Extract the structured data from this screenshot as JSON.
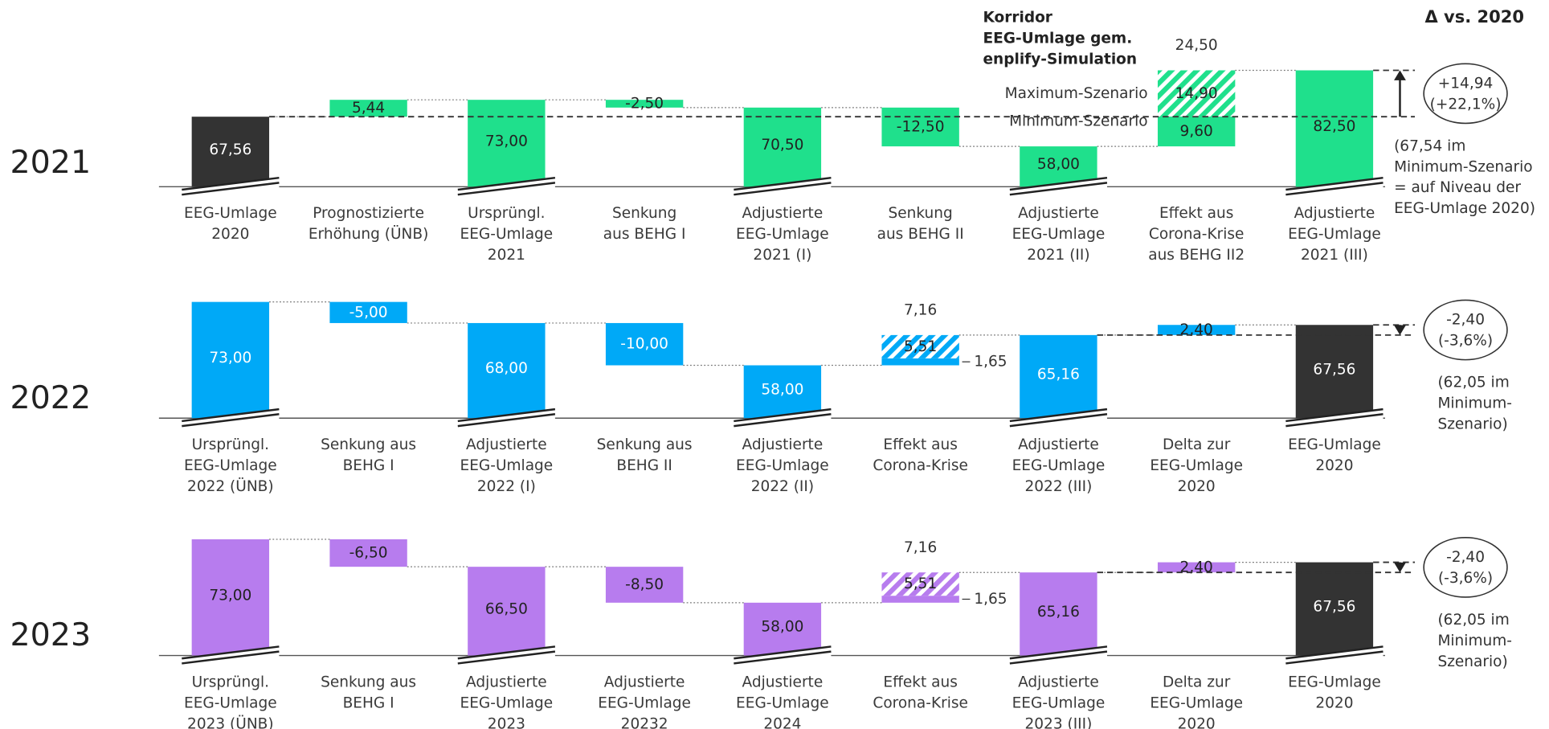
{
  "note": "Δ vs. 2020",
  "chart_data": [
    {
      "type": "waterfall",
      "title": "2021",
      "color": "#1fe08c",
      "ylim": [
        45,
        85
      ],
      "categories": [
        [
          "EEG-Umlage",
          "2020"
        ],
        [
          "Prognostizierte",
          "Erhöhung (ÜNB)"
        ],
        [
          "Ursprüngl.",
          "EEG-Umlage",
          "2021"
        ],
        [
          "Senkung",
          "aus BEHG I"
        ],
        [
          "Adjustierte",
          "EEG-Umlage",
          "2021 (I)"
        ],
        [
          "Senkung",
          "aus BEHG II"
        ],
        [
          "Adjustierte",
          "EEG-Umlage",
          "2021 (II)"
        ],
        [
          "Effekt aus",
          "Corona-Krise",
          "aus BEHG II2"
        ],
        [
          "Adjustierte",
          "EEG-Umlage",
          "2021 (III)"
        ]
      ],
      "measures": [
        "total",
        "relative",
        "total",
        "relative",
        "total",
        "relative",
        "total",
        "relative",
        "total"
      ],
      "values": [
        67.56,
        5.44,
        73,
        -2.5,
        70.5,
        -12.5,
        58,
        null,
        82.5
      ],
      "value_labels": [
        "67,56",
        "5,44",
        "73,00",
        "-2,50",
        "70,50",
        "-12,50",
        "58,00",
        null,
        "82,50"
      ],
      "bar_colors": [
        "#333333",
        "#1fe08c",
        "#1fe08c",
        "#1fe08c",
        "#1fe08c",
        "#1fe08c",
        "#1fe08c",
        "#1fe08c",
        "#1fe08c"
      ],
      "corridor": {
        "values": [
          9.6,
          14.9
        ],
        "value_labels": [
          "9,60",
          "14,90"
        ],
        "sum": 24.5,
        "sum_label": "24,50"
      },
      "corridor_legend": {
        "title": [
          "Korridor",
          "EEG-Umlage gem.",
          "enplify-Simulation"
        ],
        "max": "Maximum-Szenario",
        "min": "Minimum-Szenario"
      },
      "delta": {
        "label": "+14,94",
        "pct": "(+22,1%)"
      },
      "side_note": [
        "(67,54 im",
        "Minimum-Szenario",
        "= auf Niveau der",
        "EEG-Umlage 2020)"
      ]
    },
    {
      "type": "waterfall",
      "title": "2022",
      "color": "#00a9f7",
      "ylim": [
        45.5,
        73
      ],
      "categories": [
        [
          "Ursprüngl.",
          "EEG-Umlage",
          "2022 (ÜNB)"
        ],
        [
          "Senkung aus",
          "BEHG I"
        ],
        [
          "Adjustierte",
          "EEG-Umlage",
          "2022 (I)"
        ],
        [
          "Senkung aus",
          "BEHG II"
        ],
        [
          "Adjustierte",
          "EEG-Umlage",
          "2022 (II)"
        ],
        [
          "Effekt aus",
          "Corona-Krise"
        ],
        [
          "Adjustierte",
          "EEG-Umlage",
          "2022 (III)"
        ],
        [
          "Delta zur",
          "EEG-Umlage",
          "2020"
        ],
        [
          "EEG-Umlage",
          "2020"
        ]
      ],
      "measures": [
        "total",
        "relative",
        "total",
        "relative",
        "total",
        "relative",
        "total",
        "relative",
        "total"
      ],
      "values": [
        73,
        -5,
        68,
        -10,
        58,
        null,
        65.16,
        2.4,
        67.56
      ],
      "value_labels": [
        "73,00",
        "-5,00",
        "68,00",
        "-10,00",
        "58,00",
        null,
        "65,16",
        "2,40",
        "67,56"
      ],
      "bar_colors": [
        "#00a9f7",
        "#00a9f7",
        "#00a9f7",
        "#00a9f7",
        "#00a9f7",
        "#00a9f7",
        "#00a9f7",
        "#00a9f7",
        "#333333"
      ],
      "corridor": {
        "values": [
          1.65,
          5.51
        ],
        "value_labels": [
          "1,65",
          "5,51"
        ],
        "sum": 7.16,
        "sum_label": "7,16"
      },
      "delta": {
        "label": "-2,40",
        "pct": "(-3,6%)"
      },
      "side_note": [
        "(62,05 im",
        "Minimum-",
        "Szenario)"
      ]
    },
    {
      "type": "waterfall",
      "title": "2023",
      "color": "#b77cee",
      "ylim": [
        45.5,
        73
      ],
      "categories": [
        [
          "Ursprüngl.",
          "EEG-Umlage",
          "2023 (ÜNB)"
        ],
        [
          "Senkung aus",
          "BEHG I"
        ],
        [
          "Adjustierte",
          "EEG-Umlage",
          "2023"
        ],
        [
          "Adjustierte",
          "EEG-Umlage",
          "20232"
        ],
        [
          "Adjustierte",
          "EEG-Umlage",
          "2024"
        ],
        [
          "Effekt aus",
          "Corona-Krise"
        ],
        [
          "Adjustierte",
          "EEG-Umlage",
          "2023 (III)"
        ],
        [
          "Delta zur",
          "EEG-Umlage",
          "2020"
        ],
        [
          "EEG-Umlage",
          "2020"
        ]
      ],
      "measures": [
        "total",
        "relative",
        "total",
        "relative",
        "total",
        "relative",
        "total",
        "relative",
        "total"
      ],
      "values": [
        73,
        -6.5,
        66.5,
        -8.5,
        58,
        null,
        65.16,
        2.4,
        67.56
      ],
      "value_labels": [
        "73,00",
        "-6,50",
        "66,50",
        "-8,50",
        "58,00",
        null,
        "65,16",
        "2,40",
        "67,56"
      ],
      "bar_colors": [
        "#b77cee",
        "#b77cee",
        "#b77cee",
        "#b77cee",
        "#b77cee",
        "#b77cee",
        "#b77cee",
        "#b77cee",
        "#333333"
      ],
      "corridor": {
        "values": [
          1.65,
          5.51
        ],
        "value_labels": [
          "1,65",
          "5,51"
        ],
        "sum": 7.16,
        "sum_label": "7,16"
      },
      "delta": {
        "label": "-2,40",
        "pct": "(-3,6%)"
      },
      "side_note": [
        "(62,05 im",
        "Minimum-",
        "Szenario)"
      ]
    }
  ]
}
